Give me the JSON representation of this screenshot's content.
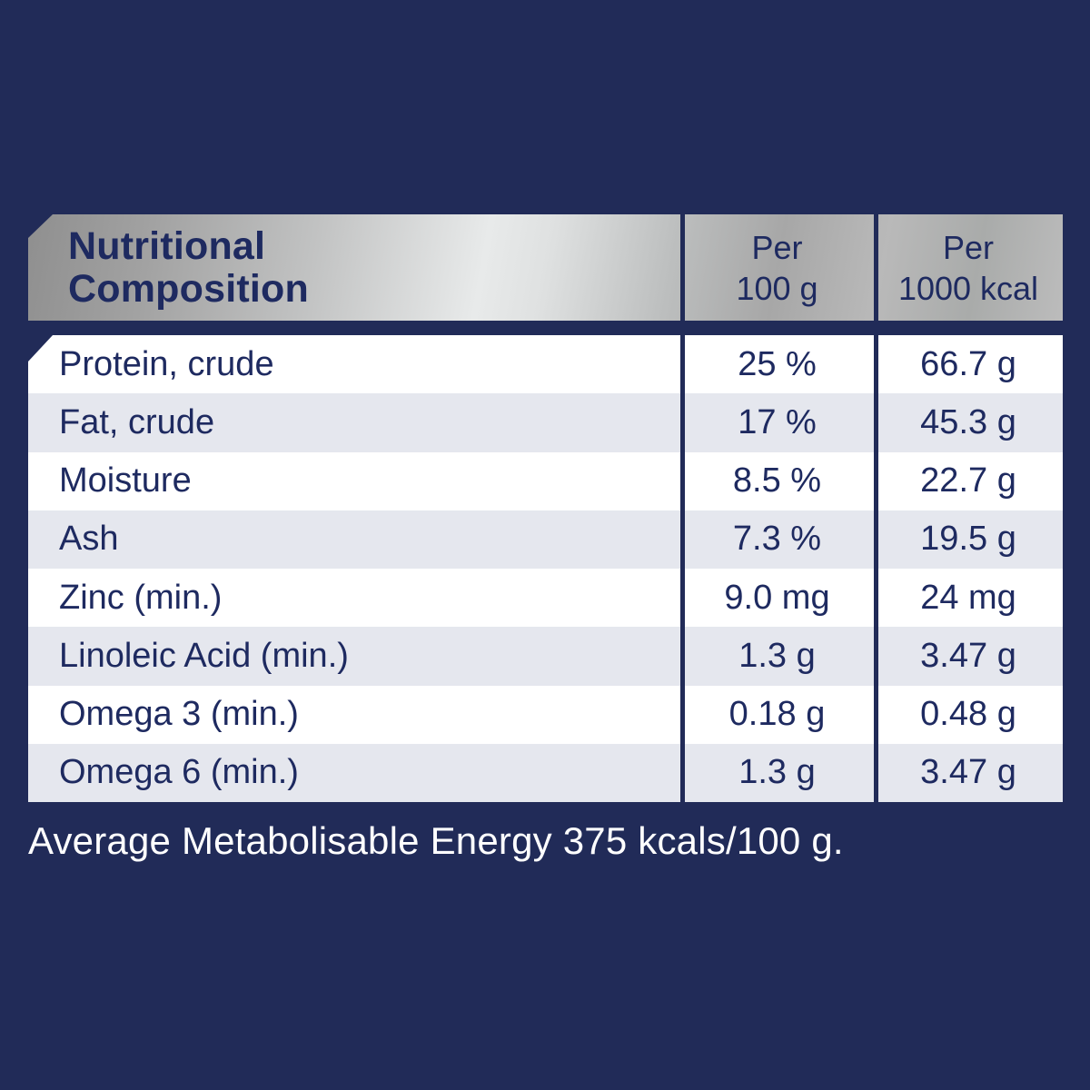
{
  "colors": {
    "background_navy": "#212b58",
    "text_navy": "#1e2a60",
    "row_white": "#ffffff",
    "row_alt_gray": "#e5e7ee",
    "header_silver_dark": "#8f8f8f",
    "header_silver_light": "#e8eaea",
    "footer_text": "#ffffff"
  },
  "table": {
    "header": {
      "title_line1": "Nutritional",
      "title_line2": "Composition",
      "col_per_100g_line1": "Per",
      "col_per_100g_line2": "100 g",
      "col_per_1000kcal_line1": "Per",
      "col_per_1000kcal_line2": "1000 kcal"
    },
    "rows": [
      {
        "label": "Protein, crude",
        "per_100g": "25 %",
        "per_1000kcal": "66.7 g"
      },
      {
        "label": "Fat, crude",
        "per_100g": "17 %",
        "per_1000kcal": "45.3 g"
      },
      {
        "label": "Moisture",
        "per_100g": "8.5 %",
        "per_1000kcal": "22.7 g"
      },
      {
        "label": "Ash",
        "per_100g": "7.3 %",
        "per_1000kcal": "19.5 g"
      },
      {
        "label": "Zinc (min.)",
        "per_100g": "9.0 mg",
        "per_1000kcal": "24 mg"
      },
      {
        "label": "Linoleic Acid (min.)",
        "per_100g": "1.3 g",
        "per_1000kcal": "3.47 g"
      },
      {
        "label": "Omega 3 (min.)",
        "per_100g": "0.18 g",
        "per_1000kcal": "0.48 g"
      },
      {
        "label": "Omega 6 (min.)",
        "per_100g": "1.3 g",
        "per_1000kcal": "3.47 g"
      }
    ],
    "footer": "Average Metabolisable Energy 375 kcals/100 g."
  }
}
